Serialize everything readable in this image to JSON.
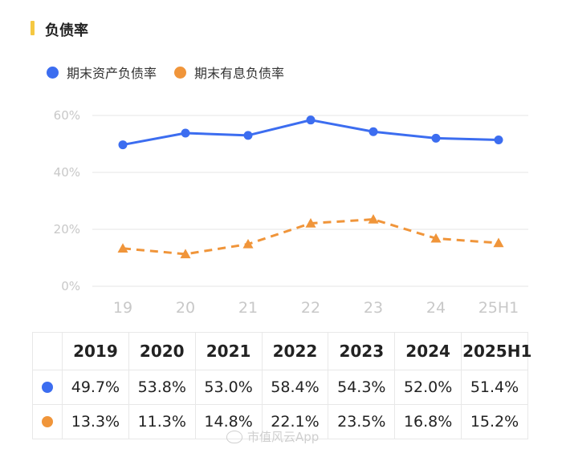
{
  "header": {
    "title": "负债率"
  },
  "colors": {
    "accent": "#f5c842",
    "series1": "#3c6df0",
    "series2": "#f0953a",
    "grid": "#e6e6e6",
    "axis_text": "#c8c8c8"
  },
  "chart_data": {
    "type": "line",
    "title": "负债率",
    "categories": [
      "19",
      "20",
      "21",
      "22",
      "23",
      "24",
      "25H1"
    ],
    "ylim": [
      0,
      60
    ],
    "yticks": [
      "0%",
      "20%",
      "40%",
      "60%"
    ],
    "ytick_values": [
      0,
      20,
      40,
      60
    ],
    "grid": true,
    "legend_position": "top-left",
    "series": [
      {
        "name": "期末资产负债率",
        "marker": "circle",
        "style": "solid",
        "color": "#3c6df0",
        "values": [
          49.7,
          53.8,
          53.0,
          58.4,
          54.3,
          52.0,
          51.4
        ]
      },
      {
        "name": "期末有息负债率",
        "marker": "triangle",
        "style": "dashed",
        "color": "#f0953a",
        "values": [
          13.3,
          11.3,
          14.8,
          22.1,
          23.5,
          16.8,
          15.2
        ]
      }
    ]
  },
  "table": {
    "headers": [
      "2019",
      "2020",
      "2021",
      "2022",
      "2023",
      "2024",
      "2025H1"
    ],
    "rows": [
      {
        "color": "#3c6df0",
        "values": [
          "49.7%",
          "53.8%",
          "53.0%",
          "58.4%",
          "54.3%",
          "52.0%",
          "51.4%"
        ]
      },
      {
        "color": "#f0953a",
        "values": [
          "13.3%",
          "11.3%",
          "14.8%",
          "22.1%",
          "23.5%",
          "16.8%",
          "15.2%"
        ]
      }
    ]
  },
  "watermark": {
    "text": "市值风云App"
  }
}
